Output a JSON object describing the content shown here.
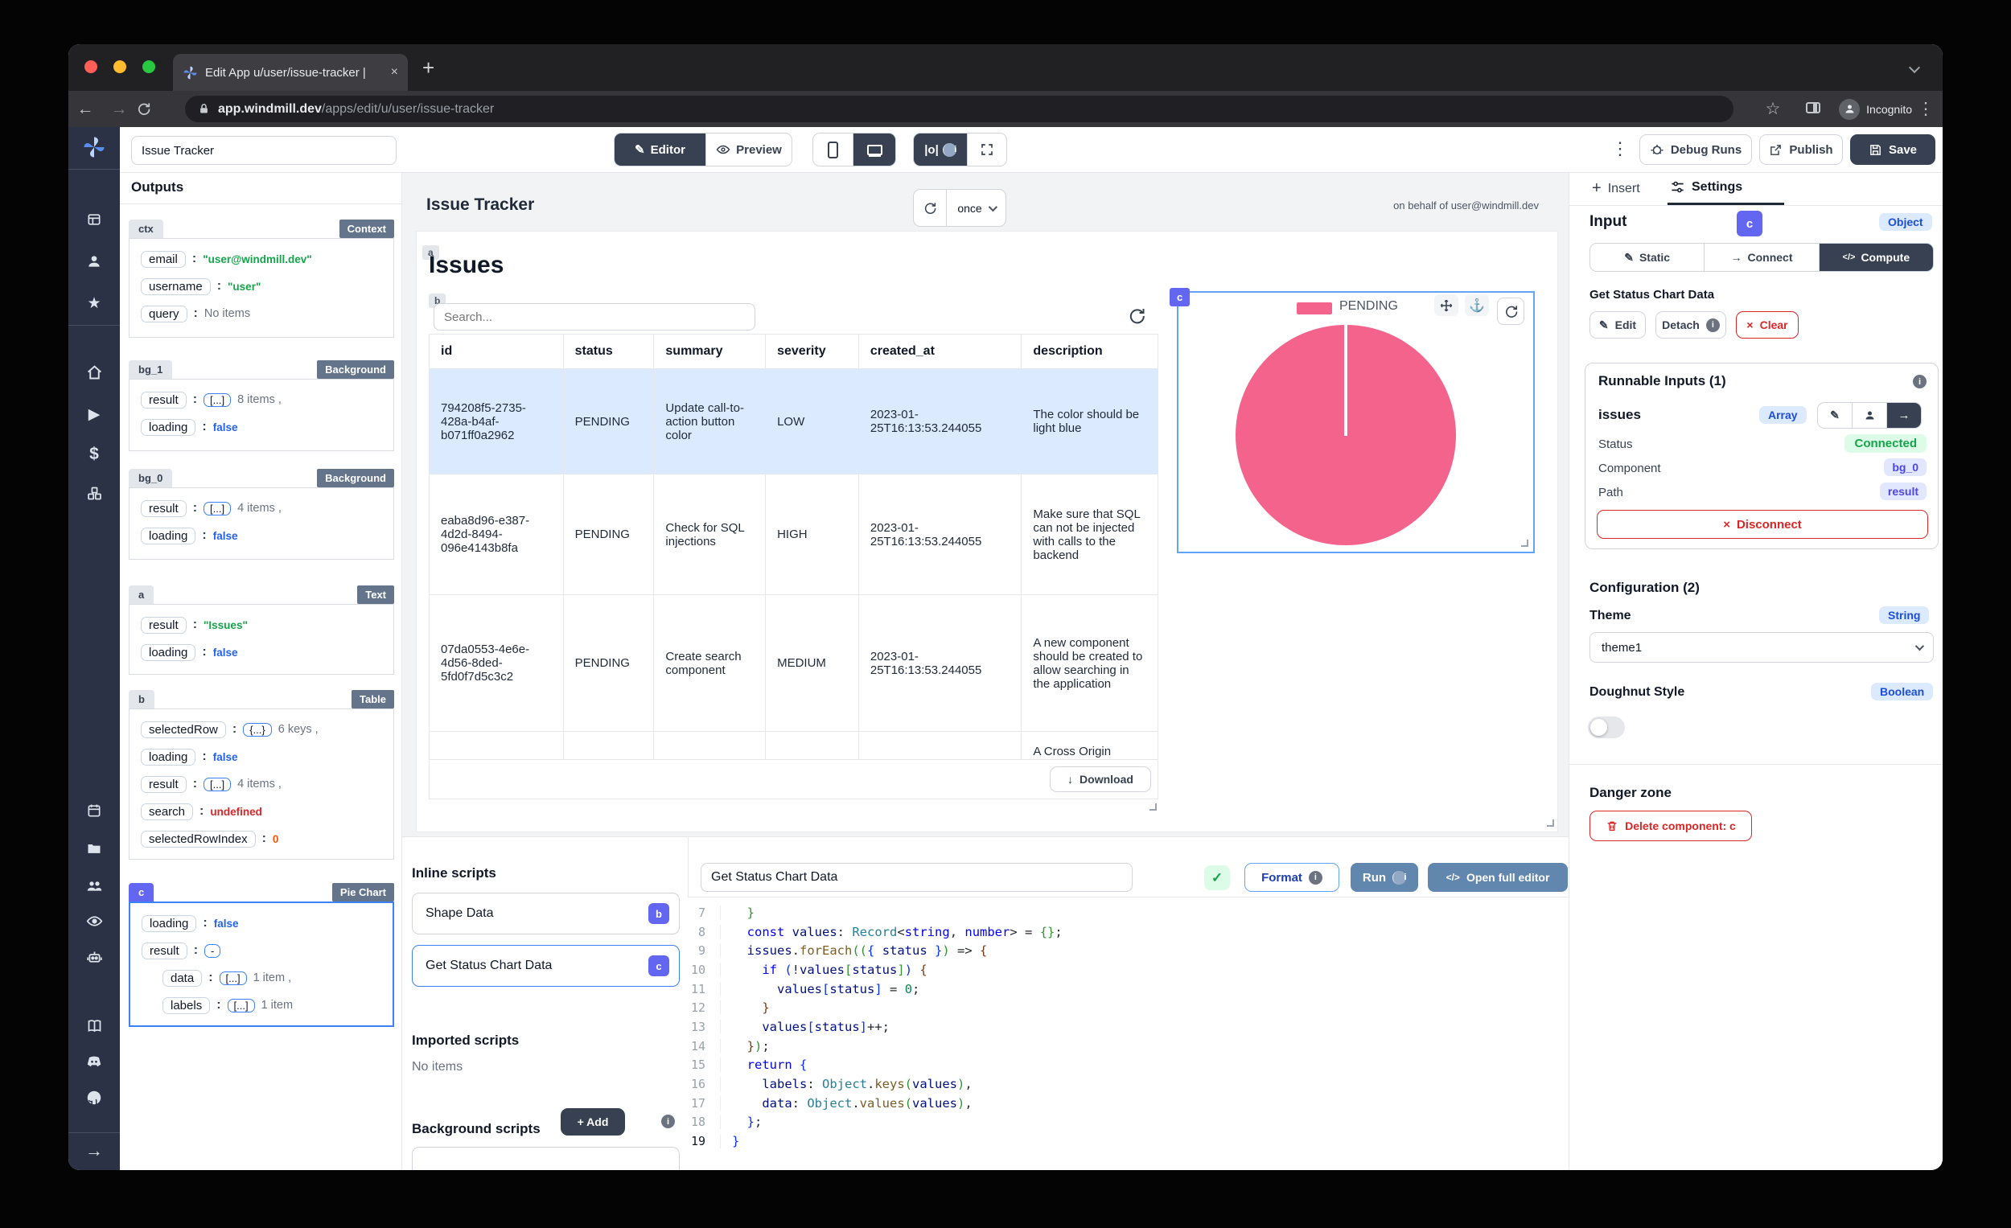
{
  "browser": {
    "tab_title": "Edit App u/user/issue-tracker |",
    "url_host": "app.windmill.dev",
    "url_path": "/apps/edit/u/user/issue-tracker",
    "incognito_label": "Incognito"
  },
  "topbar": {
    "app_name": "Issue Tracker",
    "editor": "Editor",
    "preview": "Preview",
    "schema": "|o|",
    "debug_runs": "Debug Runs",
    "publish": "Publish",
    "save": "Save"
  },
  "outputs": {
    "title": "Outputs",
    "sections": [
      {
        "id": "ctx",
        "type": "Context",
        "rows": [
          {
            "k": "email",
            "v": "\"user@windmill.dev\""
          },
          {
            "k": "username",
            "v": "\"user\""
          },
          {
            "k": "query",
            "v": "No items"
          }
        ]
      },
      {
        "id": "bg_1",
        "type": "Background",
        "rows": [
          {
            "k": "result",
            "b": "[...]",
            "v": "8 items ,"
          },
          {
            "k": "loading",
            "v": "false"
          }
        ]
      },
      {
        "id": "bg_0",
        "type": "Background",
        "rows": [
          {
            "k": "result",
            "b": "[...]",
            "v": "4 items ,"
          },
          {
            "k": "loading",
            "v": "false"
          }
        ]
      },
      {
        "id": "a",
        "type": "Text",
        "rows": [
          {
            "k": "result",
            "v": "\"Issues\""
          },
          {
            "k": "loading",
            "v": "false"
          }
        ]
      },
      {
        "id": "b",
        "type": "Table",
        "rows": [
          {
            "k": "selectedRow",
            "b": "{...}",
            "v": "6 keys ,"
          },
          {
            "k": "loading",
            "v": "false"
          },
          {
            "k": "result",
            "b": "[...]",
            "v": "4 items ,"
          },
          {
            "k": "search",
            "v": "undefined"
          },
          {
            "k": "selectedRowIndex",
            "v": "0"
          }
        ]
      },
      {
        "id": "c",
        "type": "Pie Chart",
        "rows": [
          {
            "k": "loading",
            "v": "false"
          },
          {
            "k": "result",
            "b": "-",
            "v": ""
          },
          {
            "k": "data",
            "b": "[...]",
            "v": "1 item ,"
          },
          {
            "k": "labels",
            "b": "[...]",
            "v": "1 item"
          }
        ]
      }
    ]
  },
  "canvas": {
    "title": "Issue Tracker",
    "refresh_mode": "once",
    "on_behalf": "on behalf of user@windmill.dev",
    "heading": "Issues",
    "a_badge": "a",
    "b_badge": "b",
    "c_badge": "c",
    "table": {
      "search_placeholder": "Search...",
      "headers": [
        "id",
        "status",
        "summary",
        "severity",
        "created_at",
        "description"
      ],
      "rows": [
        {
          "id": "794208f5-2735-428a-b4af-b071ff0a2962",
          "status": "PENDING",
          "summary": "Update call-to-action button color",
          "severity": "LOW",
          "created_at": "2023-01-25T16:13:53.244055",
          "description": "The color should be light blue"
        },
        {
          "id": "eaba8d96-e387-4d2d-8494-096e4143b8fa",
          "status": "PENDING",
          "summary": "Check for SQL injections",
          "severity": "HIGH",
          "created_at": "2023-01-25T16:13:53.244055",
          "description": "Make sure that SQL can not be injected with calls to the backend"
        },
        {
          "id": "07da0553-4e6e-4d56-8ded-5fd0f7d5c3c2",
          "status": "PENDING",
          "summary": "Create search component",
          "severity": "MEDIUM",
          "created_at": "2023-01-25T16:13:53.244055",
          "description": "A new component should be created to allow searching in the application"
        }
      ],
      "partial_row_description": "A Cross Origin",
      "download": "Download"
    },
    "chart_data": {
      "type": "pie",
      "labels": [
        "PENDING"
      ],
      "values": [
        4
      ],
      "color": "#f4638c",
      "legend_position": "top"
    }
  },
  "scripts": {
    "inline_title": "Inline scripts",
    "items": [
      {
        "name": "Shape Data",
        "badge": "b"
      },
      {
        "name": "Get Status Chart Data",
        "badge": "c"
      }
    ],
    "imported_title": "Imported scripts",
    "imported_empty": "No items",
    "background_title": "Background scripts",
    "add": "+ Add"
  },
  "editor": {
    "name": "Get Status Chart Data",
    "format": "Format",
    "run": "Run",
    "open_full": "Open full editor",
    "lines": [
      {
        "n": 7,
        "s": [
          {
            "t": "  }",
            "c": "b2"
          }
        ]
      },
      {
        "n": 8,
        "s": [
          {
            "t": "  ",
            "c": "pl"
          },
          {
            "t": "const",
            "c": "kw"
          },
          {
            "t": " values",
            "c": "id"
          },
          {
            "t": ": ",
            "c": "pl"
          },
          {
            "t": "Record",
            "c": "ty"
          },
          {
            "t": "<",
            "c": "pl"
          },
          {
            "t": "string",
            "c": "kw"
          },
          {
            "t": ", ",
            "c": "pl"
          },
          {
            "t": "number",
            "c": "kw"
          },
          {
            "t": "> = ",
            "c": "pl"
          },
          {
            "t": "{}",
            "c": "b2"
          },
          {
            "t": ";",
            "c": "pl"
          }
        ]
      },
      {
        "n": 9,
        "s": [
          {
            "t": "  ",
            "c": "pl"
          },
          {
            "t": "issues",
            "c": "id"
          },
          {
            "t": ".",
            "c": "pl"
          },
          {
            "t": "forEach",
            "c": "fn"
          },
          {
            "t": "((",
            "c": "b2"
          },
          {
            "t": "{",
            "c": "b1"
          },
          {
            "t": " status ",
            "c": "id"
          },
          {
            "t": "}",
            "c": "b1"
          },
          {
            "t": ")",
            "c": "b2"
          },
          {
            "t": " => ",
            "c": "pl"
          },
          {
            "t": "{",
            "c": "b3"
          }
        ]
      },
      {
        "n": 10,
        "s": [
          {
            "t": "    ",
            "c": "pl"
          },
          {
            "t": "if",
            "c": "kw"
          },
          {
            "t": " (",
            "c": "b1"
          },
          {
            "t": "!",
            "c": "pl"
          },
          {
            "t": "values",
            "c": "id"
          },
          {
            "t": "[",
            "c": "b2"
          },
          {
            "t": "status",
            "c": "id"
          },
          {
            "t": "]",
            "c": "b2"
          },
          {
            "t": ")",
            "c": "b1"
          },
          {
            "t": " {",
            "c": "b3"
          }
        ]
      },
      {
        "n": 11,
        "s": [
          {
            "t": "      ",
            "c": "pl"
          },
          {
            "t": "values",
            "c": "id"
          },
          {
            "t": "[",
            "c": "b1"
          },
          {
            "t": "status",
            "c": "id"
          },
          {
            "t": "]",
            "c": "b1"
          },
          {
            "t": " = ",
            "c": "pl"
          },
          {
            "t": "0",
            "c": "nm"
          },
          {
            "t": ";",
            "c": "pl"
          }
        ]
      },
      {
        "n": 12,
        "s": [
          {
            "t": "    }",
            "c": "b3"
          }
        ]
      },
      {
        "n": 13,
        "s": [
          {
            "t": "    ",
            "c": "pl"
          },
          {
            "t": "values",
            "c": "id"
          },
          {
            "t": "[",
            "c": "b1"
          },
          {
            "t": "status",
            "c": "id"
          },
          {
            "t": "]",
            "c": "b1"
          },
          {
            "t": "++;",
            "c": "pl"
          }
        ]
      },
      {
        "n": 14,
        "s": [
          {
            "t": "  ",
            "c": "pl"
          },
          {
            "t": "}",
            "c": "b3"
          },
          {
            "t": ")",
            "c": "b2"
          },
          {
            "t": ";",
            "c": "pl"
          }
        ]
      },
      {
        "n": 15,
        "s": [
          {
            "t": "  ",
            "c": "pl"
          },
          {
            "t": "return",
            "c": "kw"
          },
          {
            "t": " {",
            "c": "b1"
          }
        ]
      },
      {
        "n": 16,
        "s": [
          {
            "t": "    ",
            "c": "pl"
          },
          {
            "t": "labels",
            "c": "id"
          },
          {
            "t": ": ",
            "c": "pl"
          },
          {
            "t": "Object",
            "c": "ty"
          },
          {
            "t": ".",
            "c": "pl"
          },
          {
            "t": "keys",
            "c": "fn"
          },
          {
            "t": "(",
            "c": "b2"
          },
          {
            "t": "values",
            "c": "id"
          },
          {
            "t": ")",
            "c": "b2"
          },
          {
            "t": ",",
            "c": "pl"
          }
        ]
      },
      {
        "n": 17,
        "s": [
          {
            "t": "    ",
            "c": "pl"
          },
          {
            "t": "data",
            "c": "id"
          },
          {
            "t": ": ",
            "c": "pl"
          },
          {
            "t": "Object",
            "c": "ty"
          },
          {
            "t": ".",
            "c": "pl"
          },
          {
            "t": "values",
            "c": "fn"
          },
          {
            "t": "(",
            "c": "b2"
          },
          {
            "t": "values",
            "c": "id"
          },
          {
            "t": ")",
            "c": "b2"
          },
          {
            "t": ",",
            "c": "pl"
          }
        ]
      },
      {
        "n": 18,
        "s": [
          {
            "t": "  ",
            "c": "pl"
          },
          {
            "t": "}",
            "c": "b1"
          },
          {
            "t": ";",
            "c": "pl"
          }
        ]
      },
      {
        "n": 19,
        "current": true,
        "s": [
          {
            "t": "}",
            "c": "b1"
          }
        ]
      }
    ]
  },
  "panel": {
    "insert": "Insert",
    "settings": "Settings",
    "input_title": "Input",
    "component": "c",
    "input_type": "Object",
    "static": "Static",
    "connect": "Connect",
    "compute": "Compute",
    "script_name": "Get Status Chart Data",
    "edit": "Edit",
    "detach": "Detach",
    "clear": "Clear",
    "runnable_title": "Runnable Inputs (1)",
    "arg": "issues",
    "arg_type": "Array",
    "status_label": "Status",
    "status": "Connected",
    "component_label": "Component",
    "component_value": "bg_0",
    "path_label": "Path",
    "path_value": "result",
    "disconnect": "Disconnect",
    "config_title": "Configuration (2)",
    "theme_label": "Theme",
    "theme_type": "String",
    "theme_value": "theme1",
    "doughnut_label": "Doughnut Style",
    "doughnut_type": "Boolean",
    "danger_title": "Danger zone",
    "delete": "Delete component: c"
  },
  "icons": {
    "close": "×",
    "plus": "+",
    "dots": "⋮",
    "star": "☆",
    "back": "←",
    "forward": "→",
    "home": "⌂",
    "play": "▶",
    "dollar": "$",
    "rail_star": "★",
    "anchor": "⚓",
    "pencil": "✎",
    "check": "✓",
    "info": "i",
    "arrow": "→",
    "download": "↓",
    "code": "</>"
  }
}
